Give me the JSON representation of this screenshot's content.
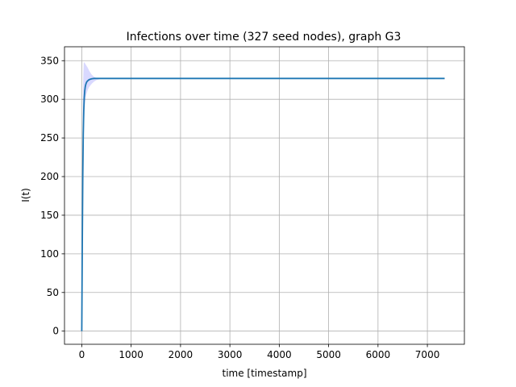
{
  "chart_data": {
    "type": "line",
    "title": "Infections over time (327 seed nodes), graph G3",
    "xlabel": "time [timestamp]",
    "ylabel": "I(t)",
    "xlim": [
      -350,
      7750
    ],
    "ylim": [
      -17,
      368
    ],
    "x_ticks": [
      0,
      1000,
      2000,
      3000,
      4000,
      5000,
      6000,
      7000
    ],
    "y_ticks": [
      0,
      50,
      100,
      150,
      200,
      250,
      300,
      350
    ],
    "grid": true,
    "colors": {
      "line": "#1f77b4",
      "band": "#0000ff"
    },
    "series": [
      {
        "x": [
          0,
          10,
          20,
          30,
          40,
          50,
          60,
          70,
          80,
          90,
          100,
          120,
          150,
          200,
          250,
          300,
          400,
          600,
          1000,
          2000,
          3000,
          4000,
          5000,
          6000,
          7000,
          7350
        ],
        "y": [
          0,
          110,
          200,
          255,
          285,
          302,
          311,
          316,
          319,
          321,
          322.5,
          324,
          325.5,
          326.5,
          327,
          327,
          327,
          327,
          327,
          327,
          327,
          327,
          327,
          327,
          327,
          327
        ],
        "lower": [
          0,
          80,
          160,
          215,
          250,
          275,
          290,
          298,
          303,
          306,
          308,
          312,
          316,
          320,
          323,
          325,
          326.5,
          327,
          327,
          327,
          327,
          327,
          327,
          327,
          327,
          327
        ],
        "upper": [
          0,
          160,
          280,
          330,
          347,
          348,
          347,
          346,
          345,
          344,
          343,
          341,
          337,
          332,
          329,
          327.5,
          327,
          327,
          327,
          327,
          327,
          327,
          327,
          327,
          327,
          327
        ]
      }
    ]
  }
}
